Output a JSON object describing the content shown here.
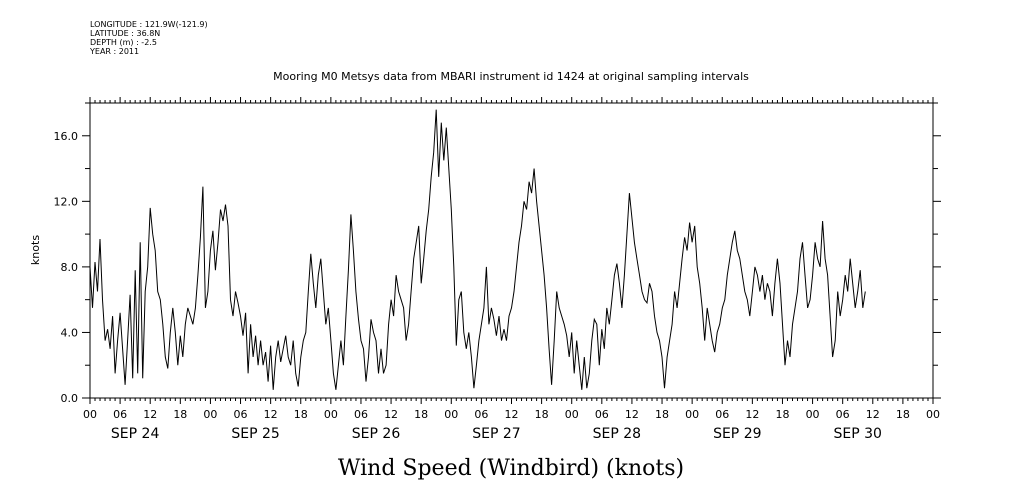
{
  "meta": {
    "longitude": "LONGITUDE : 121.9W(-121.9)",
    "latitude": "LATITUDE : 36.8N",
    "depth": "DEPTH (m) : -2.5",
    "year": "YEAR : 2011"
  },
  "chart_data": {
    "type": "line",
    "title": "Mooring M0 Metsys data from MBARI instrument id 1424 at original sampling intervals",
    "footer_label": "Wind Speed (Windbird) (knots)",
    "ylabel": "knots",
    "ylim": [
      0,
      18
    ],
    "yticks": [
      "0.0",
      "4.0",
      "8.0",
      "12.0",
      "16.0"
    ],
    "xlim_hours": [
      0,
      168
    ],
    "hour_tick_labels": [
      "00",
      "06",
      "12",
      "18",
      "00",
      "06",
      "12",
      "18",
      "00",
      "06",
      "12",
      "18",
      "00",
      "06",
      "12",
      "18",
      "00",
      "06",
      "12",
      "18",
      "00",
      "06",
      "12",
      "18",
      "00",
      "06",
      "12",
      "18",
      "00"
    ],
    "date_labels": [
      "SEP 24",
      "SEP 25",
      "SEP 26",
      "SEP 27",
      "SEP 28",
      "SEP 29",
      "SEP 30"
    ],
    "grid": false,
    "series": [
      {
        "values": [
          [
            0,
            8.0
          ],
          [
            0.5,
            5.5
          ],
          [
            1,
            8.3
          ],
          [
            1.5,
            6.5
          ],
          [
            2,
            9.7
          ],
          [
            2.5,
            6.0
          ],
          [
            3,
            3.5
          ],
          [
            3.5,
            4.2
          ],
          [
            4,
            3.0
          ],
          [
            4.5,
            5.0
          ],
          [
            5,
            1.5
          ],
          [
            5.5,
            3.5
          ],
          [
            6,
            5.2
          ],
          [
            6.5,
            3.0
          ],
          [
            7,
            0.8
          ],
          [
            7.5,
            3.5
          ],
          [
            8,
            6.3
          ],
          [
            8.5,
            1.2
          ],
          [
            9,
            7.8
          ],
          [
            9.5,
            1.5
          ],
          [
            10,
            9.5
          ],
          [
            10.5,
            1.2
          ],
          [
            11,
            6.5
          ],
          [
            11.5,
            8.0
          ],
          [
            12,
            11.6
          ],
          [
            12.5,
            10.0
          ],
          [
            13,
            9.0
          ],
          [
            13.5,
            6.5
          ],
          [
            14,
            6.0
          ],
          [
            14.5,
            4.5
          ],
          [
            15,
            2.5
          ],
          [
            15.5,
            1.8
          ],
          [
            16,
            4.0
          ],
          [
            16.5,
            5.5
          ],
          [
            17,
            4.0
          ],
          [
            17.5,
            2.0
          ],
          [
            18,
            3.8
          ],
          [
            18.5,
            2.5
          ],
          [
            19,
            4.5
          ],
          [
            19.5,
            5.5
          ],
          [
            20,
            5.0
          ],
          [
            20.5,
            4.5
          ],
          [
            21,
            5.5
          ],
          [
            21.5,
            7.5
          ],
          [
            22,
            9.8
          ],
          [
            22.5,
            12.9
          ],
          [
            23,
            5.5
          ],
          [
            23.5,
            6.5
          ],
          [
            24,
            9.0
          ],
          [
            24.5,
            10.2
          ],
          [
            25,
            7.8
          ],
          [
            25.5,
            9.5
          ],
          [
            26,
            11.5
          ],
          [
            26.5,
            10.8
          ],
          [
            27,
            11.8
          ],
          [
            27.5,
            10.5
          ],
          [
            28,
            6.0
          ],
          [
            28.5,
            5.0
          ],
          [
            29,
            6.5
          ],
          [
            29.5,
            5.8
          ],
          [
            30,
            5.0
          ],
          [
            30.5,
            3.8
          ],
          [
            31,
            5.2
          ],
          [
            31.5,
            1.5
          ],
          [
            32,
            4.5
          ],
          [
            32.5,
            2.5
          ],
          [
            33,
            3.8
          ],
          [
            33.5,
            2.0
          ],
          [
            34,
            3.5
          ],
          [
            34.5,
            2.0
          ],
          [
            35,
            2.8
          ],
          [
            35.5,
            1.0
          ],
          [
            36,
            3.2
          ],
          [
            36.5,
            0.5
          ],
          [
            37,
            2.5
          ],
          [
            37.5,
            3.5
          ],
          [
            38,
            2.2
          ],
          [
            38.5,
            3.0
          ],
          [
            39,
            3.8
          ],
          [
            39.5,
            2.5
          ],
          [
            40,
            2.0
          ],
          [
            40.5,
            3.5
          ],
          [
            41,
            1.5
          ],
          [
            41.5,
            0.7
          ],
          [
            42,
            2.5
          ],
          [
            42.5,
            3.5
          ],
          [
            43,
            4.0
          ],
          [
            43.5,
            6.5
          ],
          [
            44,
            8.8
          ],
          [
            44.5,
            7.0
          ],
          [
            45,
            5.5
          ],
          [
            45.5,
            7.5
          ],
          [
            46,
            8.5
          ],
          [
            46.5,
            6.5
          ],
          [
            47,
            4.5
          ],
          [
            47.5,
            5.5
          ],
          [
            48,
            3.5
          ],
          [
            48.5,
            1.5
          ],
          [
            49,
            0.5
          ],
          [
            49.5,
            2.0
          ],
          [
            50,
            3.5
          ],
          [
            50.5,
            2.0
          ],
          [
            51,
            5.0
          ],
          [
            51.5,
            7.8
          ],
          [
            52,
            11.2
          ],
          [
            52.5,
            9.0
          ],
          [
            53,
            6.5
          ],
          [
            53.5,
            4.8
          ],
          [
            54,
            3.5
          ],
          [
            54.5,
            3.0
          ],
          [
            55,
            1.0
          ],
          [
            55.5,
            2.5
          ],
          [
            56,
            4.8
          ],
          [
            56.5,
            4.0
          ],
          [
            57,
            3.5
          ],
          [
            57.5,
            1.5
          ],
          [
            58,
            3.0
          ],
          [
            58.5,
            1.5
          ],
          [
            59,
            2.0
          ],
          [
            59.5,
            4.5
          ],
          [
            60,
            6.0
          ],
          [
            60.5,
            5.0
          ],
          [
            61,
            7.5
          ],
          [
            61.5,
            6.5
          ],
          [
            62,
            6.0
          ],
          [
            62.5,
            5.5
          ],
          [
            63,
            3.5
          ],
          [
            63.5,
            4.5
          ],
          [
            64,
            6.5
          ],
          [
            64.5,
            8.5
          ],
          [
            65,
            9.5
          ],
          [
            65.5,
            10.5
          ],
          [
            66,
            7.0
          ],
          [
            66.5,
            8.5
          ],
          [
            67,
            10.2
          ],
          [
            67.5,
            11.5
          ],
          [
            68,
            13.5
          ],
          [
            68.5,
            15.0
          ],
          [
            69,
            17.6
          ],
          [
            69.5,
            13.5
          ],
          [
            70,
            16.8
          ],
          [
            70.5,
            14.5
          ],
          [
            71,
            16.5
          ],
          [
            71.5,
            14.0
          ],
          [
            72,
            11.5
          ],
          [
            72.5,
            8.0
          ],
          [
            73,
            3.2
          ],
          [
            73.5,
            6.0
          ],
          [
            74,
            6.5
          ],
          [
            74.5,
            4.0
          ],
          [
            75,
            3.0
          ],
          [
            75.5,
            4.0
          ],
          [
            76,
            2.5
          ],
          [
            76.5,
            0.6
          ],
          [
            77,
            2.0
          ],
          [
            77.5,
            3.5
          ],
          [
            78,
            4.5
          ],
          [
            78.5,
            5.5
          ],
          [
            79,
            8.0
          ],
          [
            79.5,
            4.5
          ],
          [
            80,
            5.5
          ],
          [
            80.5,
            4.8
          ],
          [
            81,
            3.8
          ],
          [
            81.5,
            5.0
          ],
          [
            82,
            3.5
          ],
          [
            82.5,
            4.2
          ],
          [
            83,
            3.5
          ],
          [
            83.5,
            5.0
          ],
          [
            84,
            5.5
          ],
          [
            84.5,
            6.5
          ],
          [
            85,
            8.0
          ],
          [
            85.5,
            9.5
          ],
          [
            86,
            10.5
          ],
          [
            86.5,
            12.0
          ],
          [
            87,
            11.5
          ],
          [
            87.5,
            13.2
          ],
          [
            88,
            12.5
          ],
          [
            88.5,
            14.0
          ],
          [
            89,
            12.0
          ],
          [
            89.5,
            10.5
          ],
          [
            90,
            9.0
          ],
          [
            90.5,
            7.5
          ],
          [
            91,
            5.5
          ],
          [
            91.5,
            3.0
          ],
          [
            92,
            0.8
          ],
          [
            92.5,
            3.5
          ],
          [
            93,
            6.5
          ],
          [
            93.5,
            5.5
          ],
          [
            94,
            5.0
          ],
          [
            94.5,
            4.5
          ],
          [
            95,
            3.8
          ],
          [
            95.5,
            2.5
          ],
          [
            96,
            4.0
          ],
          [
            96.5,
            1.5
          ],
          [
            97,
            3.5
          ],
          [
            97.5,
            2.0
          ],
          [
            98,
            0.5
          ],
          [
            98.5,
            2.5
          ],
          [
            99,
            0.6
          ],
          [
            99.5,
            1.5
          ],
          [
            100,
            3.5
          ],
          [
            100.5,
            4.8
          ],
          [
            101,
            4.5
          ],
          [
            101.5,
            2.0
          ],
          [
            102,
            4.2
          ],
          [
            102.5,
            3.0
          ],
          [
            103,
            5.5
          ],
          [
            103.5,
            4.5
          ],
          [
            104,
            6.0
          ],
          [
            104.5,
            7.5
          ],
          [
            105,
            8.2
          ],
          [
            105.5,
            7.0
          ],
          [
            106,
            5.5
          ],
          [
            106.5,
            7.5
          ],
          [
            107,
            10.0
          ],
          [
            107.5,
            12.5
          ],
          [
            108,
            11.0
          ],
          [
            108.5,
            9.5
          ],
          [
            109,
            8.5
          ],
          [
            109.5,
            7.5
          ],
          [
            110,
            6.5
          ],
          [
            110.5,
            6.0
          ],
          [
            111,
            5.8
          ],
          [
            111.5,
            7.0
          ],
          [
            112,
            6.5
          ],
          [
            112.5,
            5.0
          ],
          [
            113,
            4.0
          ],
          [
            113.5,
            3.5
          ],
          [
            114,
            2.5
          ],
          [
            114.5,
            0.6
          ],
          [
            115,
            2.5
          ],
          [
            115.5,
            3.5
          ],
          [
            116,
            4.5
          ],
          [
            116.5,
            6.5
          ],
          [
            117,
            5.5
          ],
          [
            117.5,
            7.0
          ],
          [
            118,
            8.5
          ],
          [
            118.5,
            9.8
          ],
          [
            119,
            9.0
          ],
          [
            119.5,
            10.7
          ],
          [
            120,
            9.5
          ],
          [
            120.5,
            10.5
          ],
          [
            121,
            8.0
          ],
          [
            121.5,
            7.0
          ],
          [
            122,
            5.5
          ],
          [
            122.5,
            3.5
          ],
          [
            123,
            5.5
          ],
          [
            123.5,
            4.5
          ],
          [
            124,
            3.5
          ],
          [
            124.5,
            2.8
          ],
          [
            125,
            4.0
          ],
          [
            125.5,
            4.5
          ],
          [
            126,
            5.5
          ],
          [
            126.5,
            6.0
          ],
          [
            127,
            7.5
          ],
          [
            127.5,
            8.5
          ],
          [
            128,
            9.5
          ],
          [
            128.5,
            10.2
          ],
          [
            129,
            9.0
          ],
          [
            129.5,
            8.5
          ],
          [
            130,
            7.5
          ],
          [
            130.5,
            6.5
          ],
          [
            131,
            6.0
          ],
          [
            131.5,
            5.0
          ],
          [
            132,
            6.5
          ],
          [
            132.5,
            8.0
          ],
          [
            133,
            7.5
          ],
          [
            133.5,
            6.5
          ],
          [
            134,
            7.5
          ],
          [
            134.5,
            6.0
          ],
          [
            135,
            7.0
          ],
          [
            135.5,
            6.5
          ],
          [
            136,
            5.0
          ],
          [
            136.5,
            7.0
          ],
          [
            137,
            8.5
          ],
          [
            137.5,
            7.0
          ],
          [
            138,
            4.5
          ],
          [
            138.5,
            2.0
          ],
          [
            139,
            3.5
          ],
          [
            139.5,
            2.5
          ],
          [
            140,
            4.5
          ],
          [
            140.5,
            5.5
          ],
          [
            141,
            6.5
          ],
          [
            141.5,
            8.5
          ],
          [
            142,
            9.5
          ],
          [
            142.5,
            7.5
          ],
          [
            143,
            5.5
          ],
          [
            143.5,
            6.0
          ],
          [
            144,
            7.5
          ],
          [
            144.5,
            9.5
          ],
          [
            145,
            8.5
          ],
          [
            145.5,
            8.0
          ],
          [
            146,
            10.8
          ],
          [
            146.5,
            8.5
          ],
          [
            147,
            7.5
          ],
          [
            147.5,
            5.0
          ],
          [
            148,
            2.5
          ],
          [
            148.5,
            3.5
          ],
          [
            149,
            6.5
          ],
          [
            149.5,
            5.0
          ],
          [
            150,
            6.0
          ],
          [
            150.5,
            7.5
          ],
          [
            151,
            6.5
          ],
          [
            151.5,
            8.5
          ],
          [
            152,
            7.0
          ],
          [
            152.5,
            5.5
          ],
          [
            153,
            6.5
          ],
          [
            153.5,
            7.8
          ],
          [
            154,
            5.5
          ],
          [
            154.5,
            6.5
          ]
        ]
      }
    ]
  }
}
